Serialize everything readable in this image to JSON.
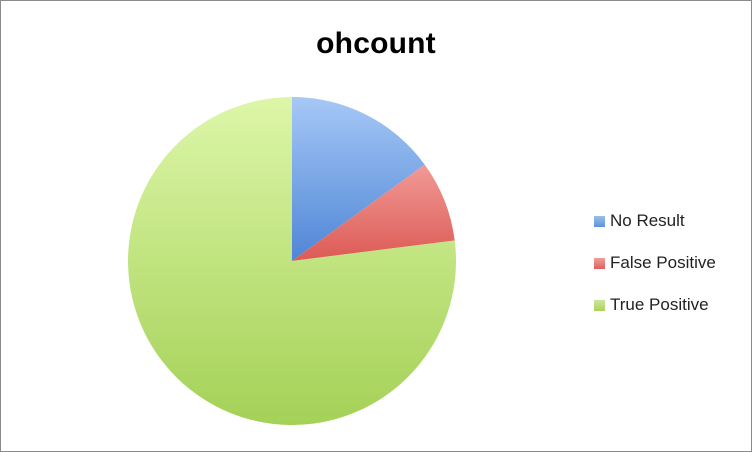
{
  "chart_data": {
    "type": "pie",
    "title": "ohcount",
    "categories": [
      "No Result",
      "False Positive",
      "True Positive"
    ],
    "values": [
      15,
      8,
      77
    ],
    "colors": [
      "#5b93dc",
      "#e0605c",
      "#a9d45c"
    ],
    "legend_position": "right"
  }
}
